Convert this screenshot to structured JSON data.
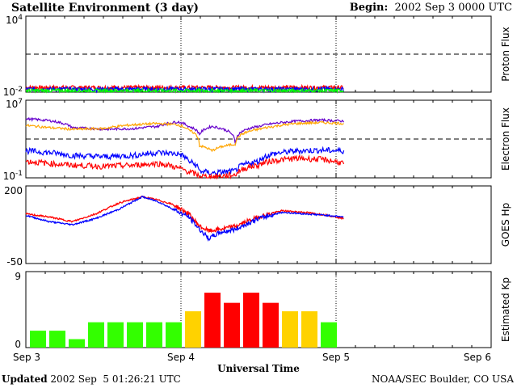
{
  "header": {
    "title": "Satellite Environment (3 day)",
    "begin_label": "Begin:",
    "begin_value": "2002 Sep 3 0000 UTC"
  },
  "footer": {
    "updated_label": "Updated",
    "updated_value": "2002 Sep  5 01:26:21 UTC",
    "credit": "NOAA/SEC Boulder, CO USA"
  },
  "x_axis": {
    "title": "Universal Time",
    "ticks": [
      "Sep 3",
      "Sep 4",
      "Sep 5",
      "Sep 6"
    ]
  },
  "colors": {
    "red": "#ff0000",
    "blue": "#0000ff",
    "green": "#00ff00",
    "purple": "#6600cc",
    "orange": "#ffa500",
    "kp_green": "#33ff00",
    "kp_yellow": "#ffd200",
    "kp_red": "#ff0000"
  },
  "chart_data": [
    {
      "type": "line",
      "panel": "proton",
      "ylabel": "Proton Flux",
      "ytick_top_base": "10",
      "ytick_top_exp": "4",
      "ytick_bottom_base": "10",
      "ytick_bottom_exp": "-2",
      "yscale": "log",
      "ylim": [
        0.01,
        10000
      ],
      "threshold": 10,
      "x_days": [
        0,
        2.05
      ],
      "series": [
        {
          "color": "red",
          "level": 0.02
        },
        {
          "color": "blue",
          "level": 0.015
        },
        {
          "color": "green",
          "level": 0.011
        }
      ]
    },
    {
      "type": "line",
      "panel": "electron",
      "ylabel": "Electron Flux",
      "ytick_top_base": "10",
      "ytick_top_exp": "7",
      "ytick_bottom_base": "10",
      "ytick_bottom_exp": "-1",
      "yscale": "log",
      "ylim": [
        0.1,
        10000000
      ],
      "threshold": 1000,
      "series": [
        {
          "color": "purple",
          "x": [
            0,
            0.15,
            0.3,
            0.5,
            0.7,
            0.85,
            0.98,
            1.05,
            1.12,
            1.2,
            1.35,
            1.5,
            1.6,
            1.75,
            1.9,
            2.05
          ],
          "y": [
            120000,
            80000,
            15000,
            10000,
            12000,
            20000,
            60000,
            20000,
            3000,
            20000,
            300,
            20000,
            40000,
            70000,
            90000,
            70000
          ]
        },
        {
          "color": "orange",
          "x": [
            0,
            0.15,
            0.3,
            0.5,
            0.7,
            0.85,
            0.98,
            1.05,
            1.12,
            1.2,
            1.35,
            1.5,
            1.6,
            1.75,
            1.9,
            2.05
          ],
          "y": [
            25000,
            15000,
            10000,
            12000,
            30000,
            40000,
            30000,
            8000,
            200,
            60,
            300,
            10000,
            20000,
            40000,
            50000,
            40000
          ]
        },
        {
          "color": "blue",
          "x": [
            0,
            0.15,
            0.3,
            0.5,
            0.7,
            0.85,
            0.98,
            1.05,
            1.12,
            1.2,
            1.35,
            1.5,
            1.6,
            1.75,
            1.9,
            2.05
          ],
          "y": [
            60,
            40,
            20,
            15,
            20,
            40,
            30,
            5,
            0.5,
            0.3,
            0.5,
            5,
            30,
            60,
            70,
            60
          ]
        },
        {
          "color": "red",
          "x": [
            0,
            0.15,
            0.3,
            0.5,
            0.7,
            0.85,
            0.98,
            1.05,
            1.12,
            1.2,
            1.35,
            1.5,
            1.6,
            1.75,
            1.9,
            2.05
          ],
          "y": [
            5,
            3,
            2,
            1.5,
            2,
            3,
            1,
            0.4,
            0.15,
            0.12,
            0.2,
            2,
            6,
            10,
            8,
            3
          ]
        }
      ]
    },
    {
      "type": "line",
      "panel": "hp",
      "ylabel": "GOES Hp",
      "ytick_top": "200",
      "ytick_bottom": "-50",
      "ylim": [
        -50,
        200
      ],
      "series": [
        {
          "color": "red",
          "x": [
            0,
            0.15,
            0.3,
            0.45,
            0.6,
            0.75,
            0.85,
            0.95,
            1.05,
            1.12,
            1.18,
            1.25,
            1.35,
            1.5,
            1.65,
            1.8,
            1.95,
            2.05
          ],
          "y": [
            110,
            100,
            85,
            110,
            145,
            165,
            155,
            140,
            110,
            70,
            55,
            60,
            70,
            100,
            120,
            115,
            105,
            95
          ]
        },
        {
          "color": "blue",
          "x": [
            0,
            0.15,
            0.3,
            0.45,
            0.6,
            0.75,
            0.85,
            0.95,
            1.05,
            1.12,
            1.18,
            1.25,
            1.35,
            1.5,
            1.65,
            1.8,
            1.95,
            2.05
          ],
          "y": [
            105,
            85,
            75,
            95,
            125,
            165,
            150,
            125,
            100,
            60,
            30,
            50,
            60,
            95,
            115,
            110,
            105,
            100
          ]
        }
      ]
    },
    {
      "type": "bar",
      "panel": "kp",
      "ylabel": "Estimated Kp",
      "ytick_top": "9",
      "ytick_bottom": "0",
      "ylim": [
        0,
        9
      ],
      "x_days": [
        0,
        0.125,
        0.25,
        0.375,
        0.5,
        0.625,
        0.75,
        0.875,
        1.0,
        1.125,
        1.25,
        1.375,
        1.5,
        1.625,
        1.75,
        1.875
      ],
      "values": [
        2,
        2,
        1,
        3,
        3,
        3,
        3,
        3,
        4.3,
        6.5,
        5.3,
        6.5,
        5.3,
        4.3,
        4.3,
        3
      ],
      "colors": [
        "kp_green",
        "kp_green",
        "kp_green",
        "kp_green",
        "kp_green",
        "kp_green",
        "kp_green",
        "kp_green",
        "kp_yellow",
        "kp_red",
        "kp_red",
        "kp_red",
        "kp_red",
        "kp_yellow",
        "kp_yellow",
        "kp_green"
      ]
    }
  ]
}
